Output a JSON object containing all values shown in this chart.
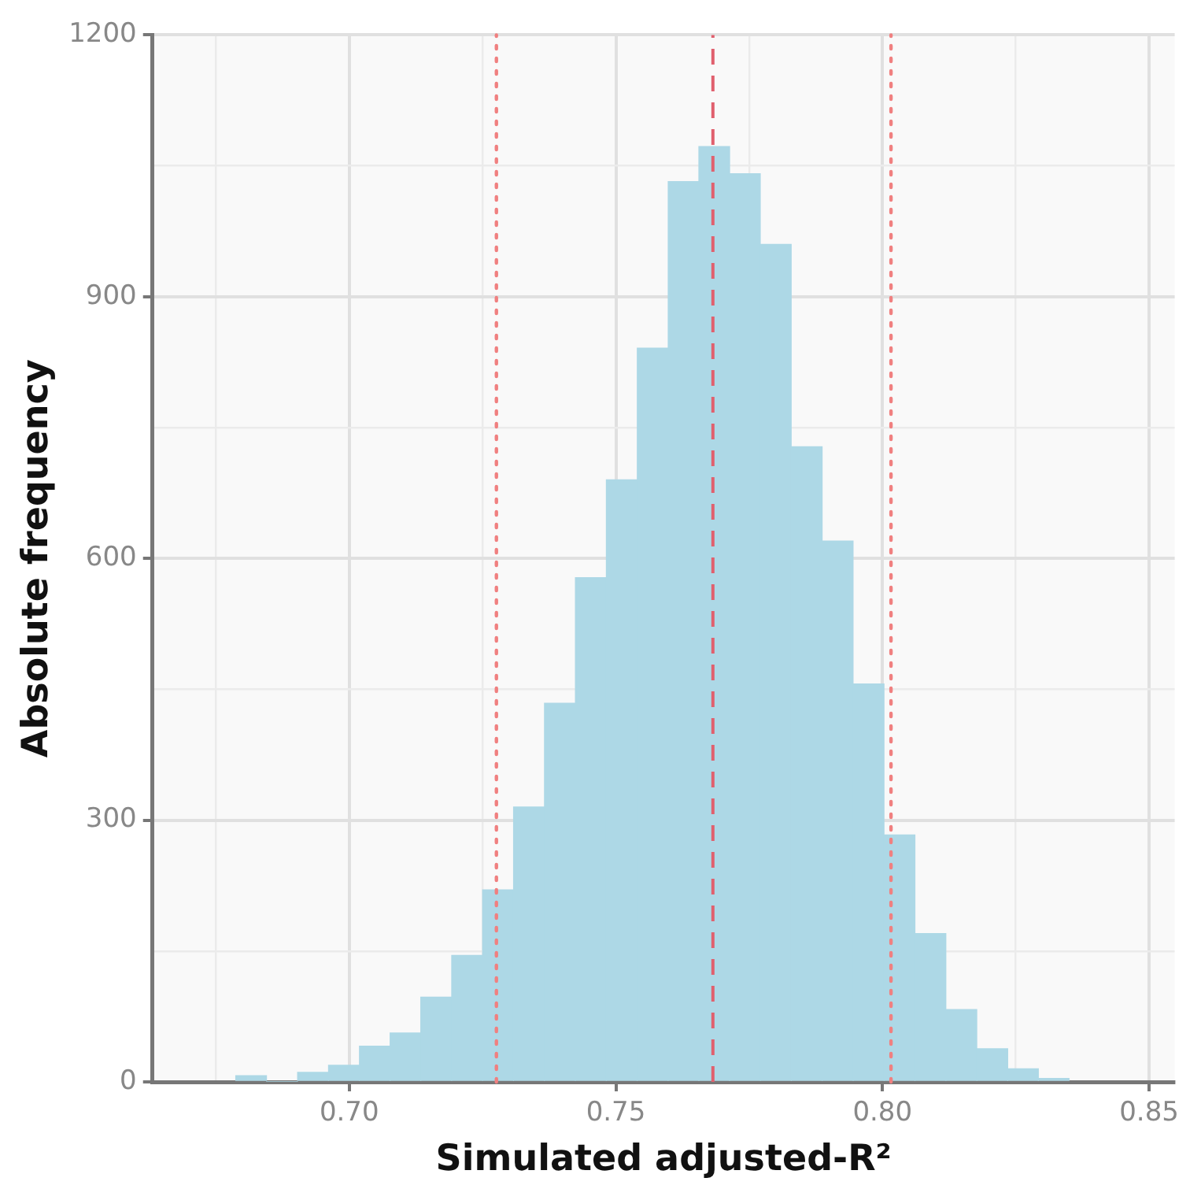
{
  "chart_data": {
    "type": "histogram",
    "xlabel": "Simulated adjusted-R²",
    "ylabel": "Absolute frequency",
    "bins": [
      0.6787,
      0.6845,
      0.6903,
      0.6961,
      0.7019,
      0.7077,
      0.7134,
      0.7192,
      0.725,
      0.7308,
      0.7366,
      0.7424,
      0.7482,
      0.754,
      0.7598,
      0.7656,
      0.7713,
      0.7771,
      0.7829,
      0.7887,
      0.7945,
      0.8003,
      0.8061,
      0.8119,
      0.8177,
      0.8235,
      0.8292,
      0.835
    ],
    "values": [
      7,
      0,
      11,
      19,
      41,
      56,
      97,
      145,
      220,
      315,
      434,
      578,
      690,
      841,
      1032,
      1072,
      1041,
      960,
      728,
      620,
      456,
      283,
      170,
      83,
      38,
      15,
      4
    ],
    "color": "#add8e6",
    "xlim": [
      0.6631,
      0.8548
    ],
    "xticks": [
      {
        "value": 0.675,
        "label": null
      },
      {
        "value": 0.7,
        "label": "0.70"
      },
      {
        "value": 0.725,
        "label": null
      },
      {
        "value": 0.75,
        "label": "0.75"
      },
      {
        "value": 0.775,
        "label": null
      },
      {
        "value": 0.8,
        "label": "0.80"
      },
      {
        "value": 0.825,
        "label": null
      },
      {
        "value": 0.85,
        "label": "0.85"
      }
    ],
    "ylim": [
      0,
      1200
    ],
    "yticks": [
      0,
      {
        "value": 150,
        "label": null
      },
      300,
      {
        "value": 450,
        "label": null
      },
      600,
      {
        "value": 750,
        "label": null
      },
      900,
      {
        "value": 1050,
        "label": null
      },
      1200
    ],
    "ref_lines": [
      {
        "axis": "x",
        "value": 0.7276,
        "color": "#f08080",
        "line_style": "dotted"
      },
      {
        "axis": "x",
        "value": 0.7682,
        "color": "#e0606e",
        "line_style": "dashed"
      },
      {
        "axis": "x",
        "value": 0.8016,
        "color": "#f08080",
        "line_style": "dotted"
      }
    ],
    "grid": true
  }
}
